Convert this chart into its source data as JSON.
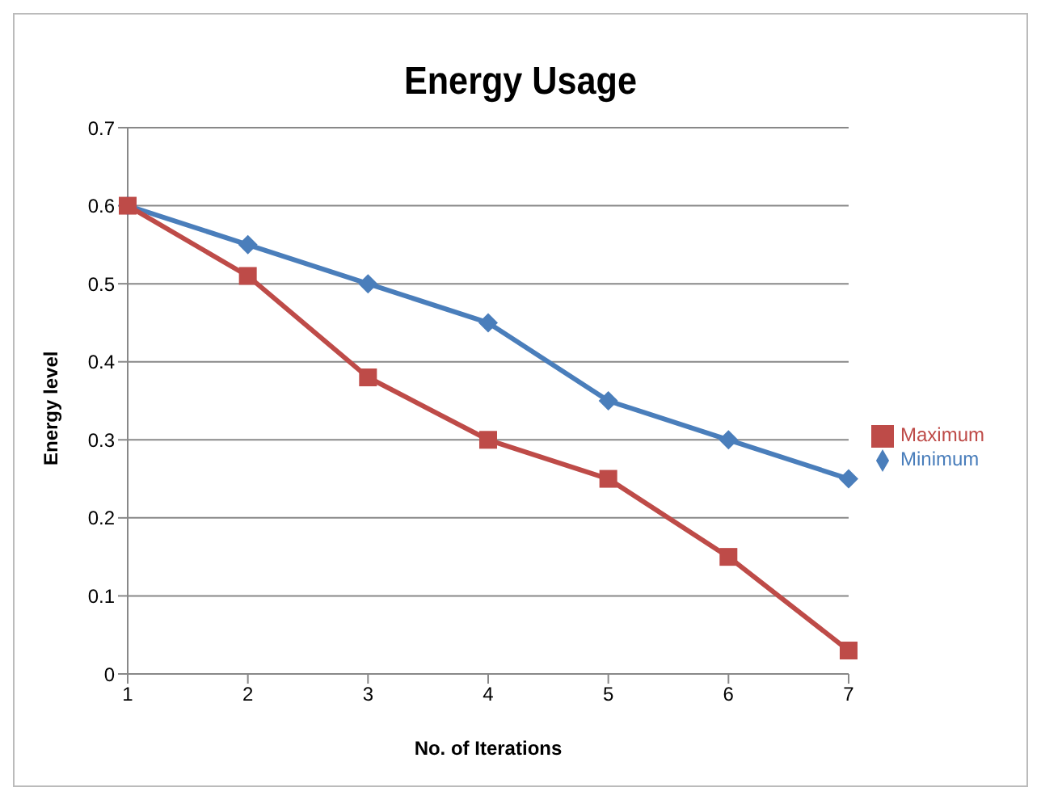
{
  "chart_data": {
    "type": "line",
    "title": "Energy Usage",
    "xlabel": "No. of Iterations",
    "ylabel": "Energy level",
    "categories": [
      "1",
      "2",
      "3",
      "4",
      "5",
      "6",
      "7"
    ],
    "series": [
      {
        "name": "Minimum",
        "color": "#4a7ebb",
        "marker": "diamond",
        "values": [
          0.6,
          0.55,
          0.5,
          0.45,
          0.35,
          0.3,
          0.25
        ]
      },
      {
        "name": "Maximum",
        "color": "#be4b48",
        "marker": "square",
        "values": [
          0.6,
          0.51,
          0.38,
          0.3,
          0.25,
          0.15,
          0.03
        ]
      }
    ],
    "ylim": [
      0,
      0.7
    ],
    "yticks": [
      0,
      0.1,
      0.2,
      0.3,
      0.4,
      0.5,
      0.6,
      0.7
    ],
    "grid": "y",
    "legend": "right",
    "line_style": "solid"
  }
}
